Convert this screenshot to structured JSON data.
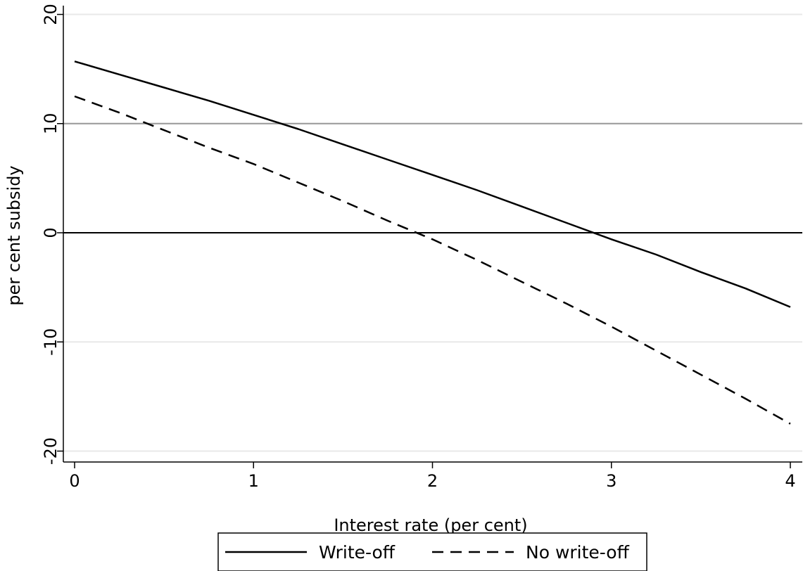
{
  "chart_data": {
    "type": "line",
    "title": "",
    "xlabel": "Interest rate (per cent)",
    "ylabel": "per cent subsidy",
    "xlim": [
      0,
      4
    ],
    "ylim": [
      -21,
      21
    ],
    "x_ticks": [
      0,
      1,
      2,
      3,
      4
    ],
    "x_tick_labels": [
      "0",
      "1",
      "2",
      "3",
      "4"
    ],
    "y_ticks": [
      20,
      10,
      0,
      -10,
      -20
    ],
    "y_tick_labels": [
      "20",
      "10",
      "0",
      "-10",
      "-20"
    ],
    "grid": "horizontal",
    "reference_lines": [
      {
        "y": 10,
        "color": "#999999"
      },
      {
        "y": 0,
        "color": "#000000"
      }
    ],
    "legend_position": "bottom-center",
    "x": [
      0,
      0.25,
      0.5,
      0.75,
      1,
      1.25,
      1.5,
      1.75,
      2,
      2.25,
      2.5,
      2.75,
      3,
      3.25,
      3.5,
      3.75,
      4
    ],
    "series": [
      {
        "name": "Write-off",
        "style": "solid",
        "color": "#000000",
        "values": [
          15.7,
          14.5,
          13.3,
          12.1,
          10.8,
          9.5,
          8.1,
          6.7,
          5.3,
          3.9,
          2.4,
          0.9,
          -0.6,
          -2.0,
          -3.6,
          -5.1,
          -6.8
        ]
      },
      {
        "name": "No write-off",
        "style": "dashed",
        "color": "#000000",
        "values": [
          12.5,
          11.0,
          9.4,
          7.8,
          6.3,
          4.6,
          2.9,
          1.1,
          -0.6,
          -2.5,
          -4.5,
          -6.5,
          -8.6,
          -10.8,
          -13.0,
          -15.2,
          -17.5
        ]
      }
    ]
  }
}
